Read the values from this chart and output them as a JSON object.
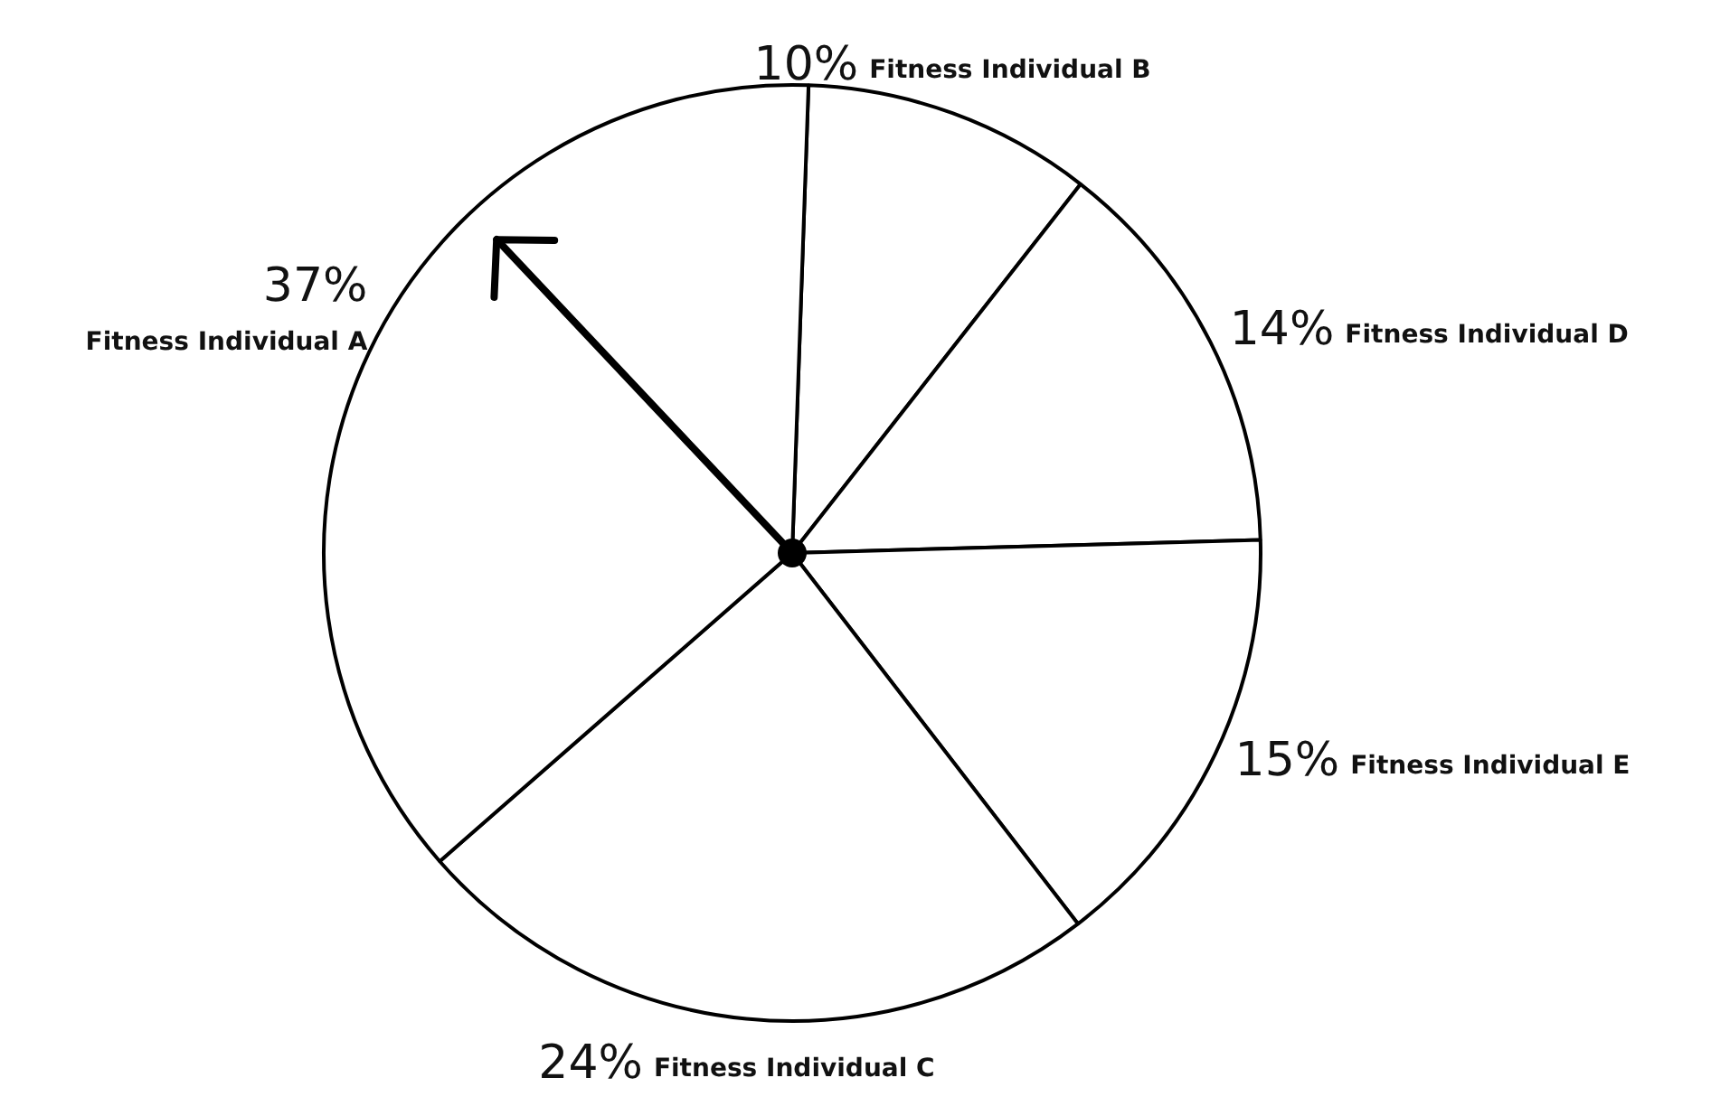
{
  "chart_data": {
    "type": "pie",
    "categories": [
      "Fitness Individual B",
      "Fitness Individual D",
      "Fitness Individual E",
      "Fitness Individual C",
      "Fitness Individual A"
    ],
    "values": [
      10,
      14,
      15,
      24,
      37
    ],
    "value_labels": [
      "10%",
      "14%",
      "15%",
      "24%",
      "37%"
    ],
    "colors": [
      "#ffffff",
      "#ffffff",
      "#ffffff",
      "#ffffff",
      "#ffffff"
    ],
    "needle": "Fitness Individual A"
  }
}
